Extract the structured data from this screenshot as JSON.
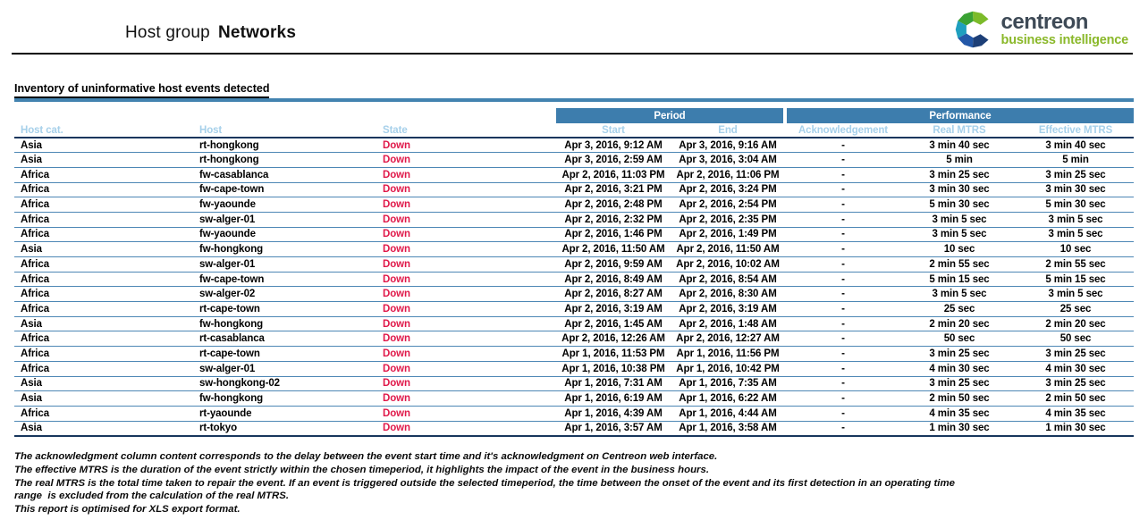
{
  "header": {
    "title_prefix": "Host group",
    "title_bold": "Networks",
    "logo": {
      "name": "centreon",
      "tagline": "business intelligence"
    }
  },
  "section": {
    "title": "Inventory of uninformative host events detected"
  },
  "table": {
    "group_headers": {
      "period": "Period",
      "performance": "Performance"
    },
    "columns": [
      "Host cat.",
      "Host",
      "State",
      "Start",
      "End",
      "Acknowledgement",
      "Real MTRS",
      "Effective MTRS"
    ],
    "column_keys": [
      "host-cat",
      "host",
      "state",
      "start",
      "end",
      "acknowledgement",
      "real-mtrs",
      "effective-mtrs"
    ],
    "rows": [
      [
        "Asia",
        "rt-hongkong",
        "Down",
        "Apr 3, 2016, 9:12 AM",
        "Apr 3, 2016, 9:16 AM",
        "-",
        "3 min 40 sec",
        "3 min 40 sec"
      ],
      [
        "Asia",
        "rt-hongkong",
        "Down",
        "Apr 3, 2016, 2:59 AM",
        "Apr 3, 2016, 3:04 AM",
        "-",
        "5 min",
        "5 min"
      ],
      [
        "Africa",
        "fw-casablanca",
        "Down",
        "Apr 2, 2016, 11:03 PM",
        "Apr 2, 2016, 11:06 PM",
        "-",
        "3 min 25 sec",
        "3 min 25 sec"
      ],
      [
        "Africa",
        "fw-cape-town",
        "Down",
        "Apr 2, 2016, 3:21 PM",
        "Apr 2, 2016, 3:24 PM",
        "-",
        "3 min 30 sec",
        "3 min 30 sec"
      ],
      [
        "Africa",
        "fw-yaounde",
        "Down",
        "Apr 2, 2016, 2:48 PM",
        "Apr 2, 2016, 2:54 PM",
        "-",
        "5 min 30 sec",
        "5 min 30 sec"
      ],
      [
        "Africa",
        "sw-alger-01",
        "Down",
        "Apr 2, 2016, 2:32 PM",
        "Apr 2, 2016, 2:35 PM",
        "-",
        "3 min 5 sec",
        "3 min 5 sec"
      ],
      [
        "Africa",
        "fw-yaounde",
        "Down",
        "Apr 2, 2016, 1:46 PM",
        "Apr 2, 2016, 1:49 PM",
        "-",
        "3 min 5 sec",
        "3 min 5 sec"
      ],
      [
        "Asia",
        "fw-hongkong",
        "Down",
        "Apr 2, 2016, 11:50 AM",
        "Apr 2, 2016, 11:50 AM",
        "-",
        "10 sec",
        "10 sec"
      ],
      [
        "Africa",
        "sw-alger-01",
        "Down",
        "Apr 2, 2016, 9:59 AM",
        "Apr 2, 2016, 10:02 AM",
        "-",
        "2 min 55 sec",
        "2 min 55 sec"
      ],
      [
        "Africa",
        "fw-cape-town",
        "Down",
        "Apr 2, 2016, 8:49 AM",
        "Apr 2, 2016, 8:54 AM",
        "-",
        "5 min 15 sec",
        "5 min 15 sec"
      ],
      [
        "Africa",
        "sw-alger-02",
        "Down",
        "Apr 2, 2016, 8:27 AM",
        "Apr 2, 2016, 8:30 AM",
        "-",
        "3 min 5 sec",
        "3 min 5 sec"
      ],
      [
        "Africa",
        "rt-cape-town",
        "Down",
        "Apr 2, 2016, 3:19 AM",
        "Apr 2, 2016, 3:19 AM",
        "-",
        "25 sec",
        "25 sec"
      ],
      [
        "Asia",
        "fw-hongkong",
        "Down",
        "Apr 2, 2016, 1:45 AM",
        "Apr 2, 2016, 1:48 AM",
        "-",
        "2 min 20 sec",
        "2 min 20 sec"
      ],
      [
        "Africa",
        "rt-casablanca",
        "Down",
        "Apr 2, 2016, 12:26 AM",
        "Apr 2, 2016, 12:27 AM",
        "-",
        "50 sec",
        "50 sec"
      ],
      [
        "Africa",
        "rt-cape-town",
        "Down",
        "Apr 1, 2016, 11:53 PM",
        "Apr 1, 2016, 11:56 PM",
        "-",
        "3 min 25 sec",
        "3 min 25 sec"
      ],
      [
        "Africa",
        "sw-alger-01",
        "Down",
        "Apr 1, 2016, 10:38 PM",
        "Apr 1, 2016, 10:42 PM",
        "-",
        "4 min 30 sec",
        "4 min 30 sec"
      ],
      [
        "Asia",
        "sw-hongkong-02",
        "Down",
        "Apr 1, 2016, 7:31 AM",
        "Apr 1, 2016, 7:35 AM",
        "-",
        "3 min 25 sec",
        "3 min 25 sec"
      ],
      [
        "Asia",
        "fw-hongkong",
        "Down",
        "Apr 1, 2016, 6:19 AM",
        "Apr 1, 2016, 6:22 AM",
        "-",
        "2 min 50 sec",
        "2 min 50 sec"
      ],
      [
        "Africa",
        "rt-yaounde",
        "Down",
        "Apr 1, 2016, 4:39 AM",
        "Apr 1, 2016, 4:44 AM",
        "-",
        "4 min 35 sec",
        "4 min 35 sec"
      ],
      [
        "Asia",
        "rt-tokyo",
        "Down",
        "Apr 1, 2016, 3:57 AM",
        "Apr 1, 2016, 3:58 AM",
        "-",
        "1 min 30 sec",
        "1 min 30 sec"
      ]
    ]
  },
  "notes": [
    "The acknowledgment column content corresponds to the delay between the event start time and it's acknowledgment on Centreon web interface.",
    "The effective MTRS is the duration of the event strictly within the chosen timeperiod, it highlights the impact of the event in the business hours.",
    "The real MTRS is the total time taken to repair the event. If an event is triggered outside the selected timeperiod, the time between the onset of the event and its first detection in an operating time",
    "range  is excluded from the calculation of the real MTRS.",
    "This report is optimised for XLS export format."
  ],
  "colors": {
    "header_bar_blue": "#3d7dad",
    "subheader_text_blue": "#a6d0ea",
    "row_separator_blue": "#4d87b5",
    "dark_rule_navy": "#17365d",
    "section_bar_blue": "#4383b0",
    "state_down_red": "#e0194a",
    "logo_text_gray": "#3e4a56",
    "logo_green": "#8ab829"
  }
}
